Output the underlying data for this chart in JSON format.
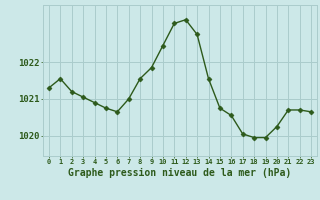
{
  "x": [
    0,
    1,
    2,
    3,
    4,
    5,
    6,
    7,
    8,
    9,
    10,
    11,
    12,
    13,
    14,
    15,
    16,
    17,
    18,
    19,
    20,
    21,
    22,
    23
  ],
  "y": [
    1021.3,
    1021.55,
    1021.2,
    1021.05,
    1020.9,
    1020.75,
    1020.65,
    1021.0,
    1021.55,
    1021.85,
    1022.45,
    1023.05,
    1023.15,
    1022.75,
    1021.55,
    1020.75,
    1020.55,
    1020.05,
    1019.95,
    1019.95,
    1020.25,
    1020.7,
    1020.7,
    1020.65
  ],
  "line_color": "#2d5a1b",
  "marker_color": "#2d5a1b",
  "bg_color": "#cce8e8",
  "grid_color": "#aacccc",
  "xlabel": "Graphe pression niveau de la mer (hPa)",
  "xlabel_color": "#2d5a1b",
  "tick_color": "#2d5a1b",
  "ytick_labels": [
    1020,
    1021,
    1022
  ],
  "ylim": [
    1019.45,
    1023.55
  ],
  "xlim": [
    -0.5,
    23.5
  ]
}
